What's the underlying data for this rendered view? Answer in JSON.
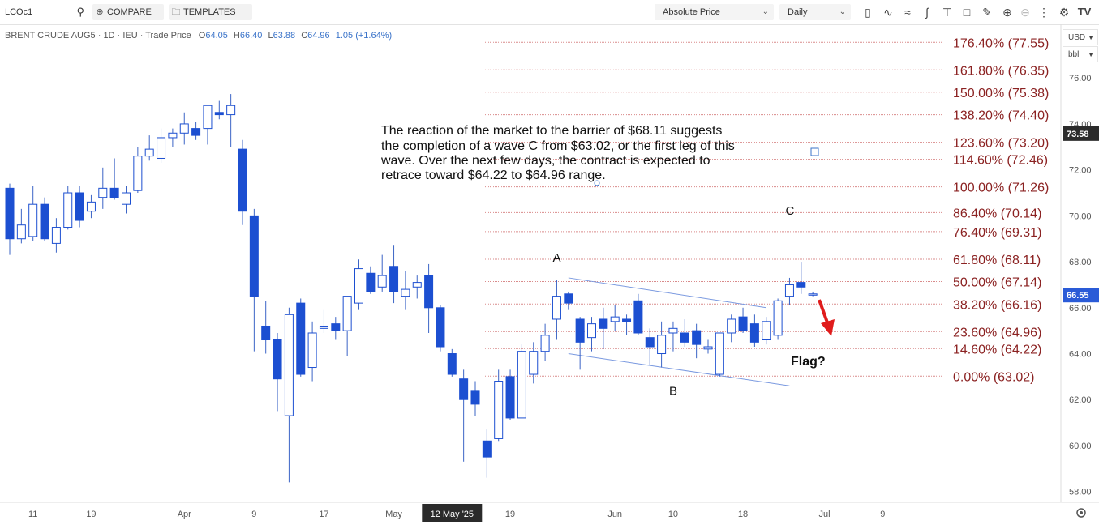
{
  "toolbar": {
    "symbol": "LCOc1",
    "compare_label": "COMPARE",
    "templates_label": "TEMPLATES",
    "price_type": "Absolute Price",
    "interval": "Daily",
    "icons": [
      "candlestick-icon",
      "indicator-icon",
      "wave-icon",
      "draw-line-icon",
      "fibonacci-icon",
      "shapes-icon",
      "zoom-in-icon",
      "zoom-out-icon",
      "more-icon",
      "settings-icon",
      "tradingview-logo"
    ]
  },
  "chart_header": {
    "name": "BRENT CRUDE AUG5",
    "interval": "1D",
    "exchange": "IEU",
    "price_source": "Trade Price",
    "open_label": "O",
    "open": "64.05",
    "high_label": "H",
    "high": "66.40",
    "low_label": "L",
    "low": "63.88",
    "close_label": "C",
    "close": "64.96",
    "change": "1.05 (+1.64%)"
  },
  "currency": "USD",
  "unit": "bbl",
  "annotation_text": [
    "The reaction of the market to the  barrier of $68.11 suggests",
    "the completion of a wave C from $63.02, or the first leg of this",
    "wave. Over the next few days, the contract is expected to",
    "retrace toward $64.22 to $64.96 range."
  ],
  "flag_label": "Flag?",
  "chart_data": {
    "type": "candlestick",
    "symbol": "LCOc1",
    "title": "BRENT CRUDE AUG5",
    "ylim": [
      57.6,
      78.3
    ],
    "y_ticks": [
      "58.00",
      "60.00",
      "62.00",
      "64.00",
      "66.00",
      "68.00",
      "70.00",
      "72.00",
      "74.00",
      "76.00"
    ],
    "x_ticks": [
      {
        "label": "11",
        "i": 2
      },
      {
        "label": "19",
        "i": 7
      },
      {
        "label": "Apr",
        "i": 15
      },
      {
        "label": "9",
        "i": 21
      },
      {
        "label": "17",
        "i": 27
      },
      {
        "label": "May",
        "i": 33
      },
      {
        "label": "12 May '25",
        "i": 38,
        "highlight": true
      },
      {
        "label": "19",
        "i": 43
      },
      {
        "label": "Jun",
        "i": 52
      },
      {
        "label": "10",
        "i": 57
      },
      {
        "label": "18",
        "i": 63
      },
      {
        "label": "Jul",
        "i": 70
      },
      {
        "label": "9",
        "i": 75
      }
    ],
    "last_price": "66.55",
    "marker_price": "73.58",
    "candles": [
      {
        "o": 71.2,
        "h": 71.4,
        "l": 68.3,
        "c": 69.0
      },
      {
        "o": 69.0,
        "h": 70.3,
        "l": 68.8,
        "c": 69.6
      },
      {
        "o": 69.1,
        "h": 71.3,
        "l": 68.9,
        "c": 70.5
      },
      {
        "o": 70.5,
        "h": 70.8,
        "l": 68.9,
        "c": 69.0
      },
      {
        "o": 68.8,
        "h": 69.9,
        "l": 68.4,
        "c": 69.5
      },
      {
        "o": 69.5,
        "h": 71.3,
        "l": 69.4,
        "c": 71.0
      },
      {
        "o": 71.0,
        "h": 71.3,
        "l": 69.5,
        "c": 69.8
      },
      {
        "o": 70.2,
        "h": 70.9,
        "l": 69.9,
        "c": 70.6
      },
      {
        "o": 70.8,
        "h": 72.1,
        "l": 70.3,
        "c": 71.2
      },
      {
        "o": 71.2,
        "h": 72.5,
        "l": 70.7,
        "c": 70.8
      },
      {
        "o": 70.5,
        "h": 71.3,
        "l": 70.1,
        "c": 71.0
      },
      {
        "o": 71.1,
        "h": 73.0,
        "l": 71.0,
        "c": 72.6
      },
      {
        "o": 72.6,
        "h": 73.5,
        "l": 72.4,
        "c": 72.9
      },
      {
        "o": 72.5,
        "h": 73.8,
        "l": 72.3,
        "c": 73.4
      },
      {
        "o": 73.4,
        "h": 73.8,
        "l": 73.0,
        "c": 73.6
      },
      {
        "o": 73.6,
        "h": 74.5,
        "l": 73.1,
        "c": 74.0
      },
      {
        "o": 73.8,
        "h": 74.1,
        "l": 73.3,
        "c": 73.5
      },
      {
        "o": 73.8,
        "h": 74.8,
        "l": 73.1,
        "c": 74.8
      },
      {
        "o": 74.5,
        "h": 75.0,
        "l": 74.2,
        "c": 74.4
      },
      {
        "o": 74.4,
        "h": 75.3,
        "l": 73.0,
        "c": 74.8
      },
      {
        "o": 72.9,
        "h": 73.3,
        "l": 69.6,
        "c": 70.2
      },
      {
        "o": 70.0,
        "h": 70.3,
        "l": 64.1,
        "c": 66.5
      },
      {
        "o": 65.2,
        "h": 66.3,
        "l": 64.0,
        "c": 64.6
      },
      {
        "o": 64.6,
        "h": 64.9,
        "l": 61.5,
        "c": 62.9
      },
      {
        "o": 61.3,
        "h": 66.0,
        "l": 58.4,
        "c": 65.7
      },
      {
        "o": 66.2,
        "h": 66.4,
        "l": 63.0,
        "c": 63.1
      },
      {
        "o": 63.4,
        "h": 65.4,
        "l": 62.8,
        "c": 64.9
      },
      {
        "o": 65.1,
        "h": 65.9,
        "l": 64.9,
        "c": 65.2
      },
      {
        "o": 65.3,
        "h": 65.6,
        "l": 64.6,
        "c": 65.0
      },
      {
        "o": 65.0,
        "h": 66.4,
        "l": 63.9,
        "c": 66.5
      },
      {
        "o": 66.2,
        "h": 68.1,
        "l": 65.9,
        "c": 67.7
      },
      {
        "o": 67.5,
        "h": 67.8,
        "l": 66.6,
        "c": 66.7
      },
      {
        "o": 66.9,
        "h": 68.3,
        "l": 66.7,
        "c": 67.4
      },
      {
        "o": 67.8,
        "h": 68.7,
        "l": 66.2,
        "c": 66.7
      },
      {
        "o": 66.5,
        "h": 67.6,
        "l": 65.9,
        "c": 66.8
      },
      {
        "o": 66.9,
        "h": 67.4,
        "l": 66.4,
        "c": 67.1
      },
      {
        "o": 67.4,
        "h": 67.9,
        "l": 64.9,
        "c": 66.0
      },
      {
        "o": 66.0,
        "h": 66.1,
        "l": 64.1,
        "c": 64.3
      },
      {
        "o": 64.0,
        "h": 64.2,
        "l": 63.0,
        "c": 63.1
      },
      {
        "o": 62.9,
        "h": 63.3,
        "l": 59.3,
        "c": 62.0
      },
      {
        "o": 62.4,
        "h": 62.8,
        "l": 61.3,
        "c": 61.8
      },
      {
        "o": 60.2,
        "h": 60.7,
        "l": 58.6,
        "c": 59.5
      },
      {
        "o": 60.3,
        "h": 63.3,
        "l": 60.2,
        "c": 62.8
      },
      {
        "o": 63.0,
        "h": 63.3,
        "l": 61.1,
        "c": 61.2
      },
      {
        "o": 61.2,
        "h": 64.4,
        "l": 61.2,
        "c": 64.1
      },
      {
        "o": 63.1,
        "h": 64.5,
        "l": 62.7,
        "c": 64.1
      },
      {
        "o": 64.1,
        "h": 65.3,
        "l": 63.7,
        "c": 64.8
      },
      {
        "o": 65.5,
        "h": 67.2,
        "l": 64.6,
        "c": 66.5
      },
      {
        "o": 66.6,
        "h": 66.7,
        "l": 65.9,
        "c": 66.2
      },
      {
        "o": 65.5,
        "h": 65.6,
        "l": 63.3,
        "c": 64.5
      },
      {
        "o": 64.7,
        "h": 65.6,
        "l": 64.1,
        "c": 65.3
      },
      {
        "o": 65.5,
        "h": 66.0,
        "l": 64.2,
        "c": 65.1
      },
      {
        "o": 65.4,
        "h": 66.1,
        "l": 65.0,
        "c": 65.6
      },
      {
        "o": 65.5,
        "h": 65.7,
        "l": 64.8,
        "c": 65.4
      },
      {
        "o": 66.3,
        "h": 66.6,
        "l": 64.8,
        "c": 64.9
      },
      {
        "o": 64.7,
        "h": 65.1,
        "l": 63.5,
        "c": 64.3
      },
      {
        "o": 64.0,
        "h": 65.4,
        "l": 63.4,
        "c": 64.8
      },
      {
        "o": 64.9,
        "h": 65.4,
        "l": 64.1,
        "c": 65.1
      },
      {
        "o": 64.9,
        "h": 65.5,
        "l": 64.3,
        "c": 64.5
      },
      {
        "o": 65.0,
        "h": 65.3,
        "l": 63.8,
        "c": 64.4
      },
      {
        "o": 64.2,
        "h": 64.6,
        "l": 64.0,
        "c": 64.3
      },
      {
        "o": 63.1,
        "h": 64.9,
        "l": 63.0,
        "c": 64.9
      },
      {
        "o": 64.9,
        "h": 65.7,
        "l": 64.5,
        "c": 65.5
      },
      {
        "o": 65.6,
        "h": 66.0,
        "l": 64.9,
        "c": 65.0
      },
      {
        "o": 65.3,
        "h": 65.7,
        "l": 64.3,
        "c": 64.5
      },
      {
        "o": 64.6,
        "h": 65.6,
        "l": 64.4,
        "c": 65.4
      },
      {
        "o": 64.8,
        "h": 66.4,
        "l": 64.6,
        "c": 66.3
      },
      {
        "o": 66.5,
        "h": 67.3,
        "l": 66.1,
        "c": 67.0
      },
      {
        "o": 67.1,
        "h": 68.0,
        "l": 66.6,
        "c": 66.9
      },
      {
        "o": 66.6,
        "h": 66.7,
        "l": 66.5,
        "c": 66.6
      }
    ],
    "fib_levels": [
      {
        "pct": "176.40%",
        "price": 77.55,
        "label": "176.40% (77.55)"
      },
      {
        "pct": "161.80%",
        "price": 76.35,
        "label": "161.80% (76.35)"
      },
      {
        "pct": "150.00%",
        "price": 75.38,
        "label": "150.00% (75.38)"
      },
      {
        "pct": "138.20%",
        "price": 74.4,
        "label": "138.20% (74.40)"
      },
      {
        "pct": "123.60%",
        "price": 73.2,
        "label": "123.60% (73.20)"
      },
      {
        "pct": "114.60%",
        "price": 72.46,
        "label": "114.60% (72.46)"
      },
      {
        "pct": "100.00%",
        "price": 71.26,
        "label": "100.00% (71.26)"
      },
      {
        "pct": "86.40%",
        "price": 70.14,
        "label": "86.40% (70.14)"
      },
      {
        "pct": "76.40%",
        "price": 69.31,
        "label": "76.40% (69.31)"
      },
      {
        "pct": "61.80%",
        "price": 68.11,
        "label": "61.80% (68.11)"
      },
      {
        "pct": "50.00%",
        "price": 67.14,
        "label": "50.00% (67.14)"
      },
      {
        "pct": "38.20%",
        "price": 66.16,
        "label": "38.20% (66.16)"
      },
      {
        "pct": "23.60%",
        "price": 64.96,
        "label": "23.60% (64.96)"
      },
      {
        "pct": "14.60%",
        "price": 64.22,
        "label": "14.60% (64.22)"
      },
      {
        "pct": "0.00%",
        "price": 63.02,
        "label": "0.00% (63.02)"
      }
    ],
    "wave_labels": [
      {
        "text": "A",
        "i": 47,
        "price": 68.0
      },
      {
        "text": "B",
        "i": 57,
        "price": 62.2
      },
      {
        "text": "C",
        "i": 67,
        "price": 70.05
      }
    ],
    "channel_lines": [
      [
        {
          "i": 48.0,
          "p": 67.3
        },
        {
          "i": 65.0,
          "p": 66.0
        }
      ],
      [
        {
          "i": 48.0,
          "p": 64.0
        },
        {
          "i": 67.0,
          "p": 62.6
        }
      ]
    ],
    "colors": {
      "bull_fill": "#ffffff",
      "bear_fill": "#1c4fd1",
      "candle_stroke": "#1c4fd1",
      "wick": "#3b64c6",
      "fib_line": "#d98b8b",
      "fib_text": "#8b2222",
      "channel": "#7b9ae0",
      "arrow": "#e01c1c",
      "last_price_bg": "#2a5bd7",
      "marker_bg": "#2b2b2b",
      "change_text": "#3a73c9"
    }
  }
}
